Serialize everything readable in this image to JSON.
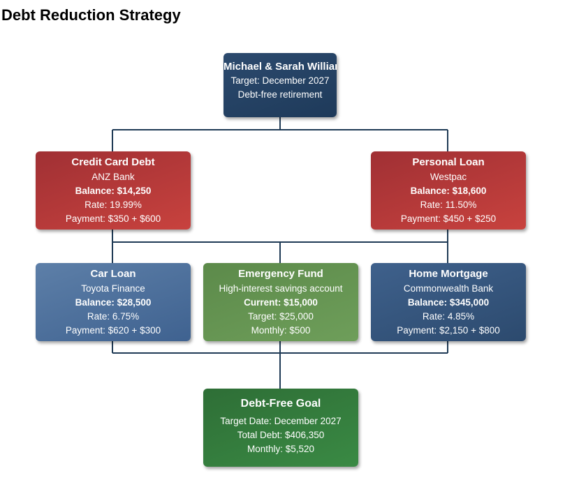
{
  "title": "Debt Reduction Strategy",
  "root": {
    "name": "Michael & Sarah Williams",
    "target": "Target: December 2027",
    "goal": "Debt-free retirement"
  },
  "nodes": {
    "credit_card": {
      "name": "Credit Card Debt",
      "lender": "ANZ Bank",
      "balance": "Balance: $14,250",
      "rate": "Rate: 19.99%",
      "payment": "Payment: $350 + $600"
    },
    "personal_loan": {
      "name": "Personal Loan",
      "lender": "Westpac",
      "balance": "Balance: $18,600",
      "rate": "Rate: 11.50%",
      "payment": "Payment: $450 + $250"
    },
    "car_loan": {
      "name": "Car Loan",
      "lender": "Toyota Finance",
      "balance": "Balance: $28,500",
      "rate": "Rate: 6.75%",
      "payment": "Payment: $620 + $300"
    },
    "emergency_fund": {
      "name": "Emergency Fund",
      "account": "High-interest savings account",
      "current": "Current: $15,000",
      "target": "Target: $25,000",
      "monthly": "Monthly: $500"
    },
    "home_mortgage": {
      "name": "Home Mortgage",
      "lender": "Commonwealth Bank",
      "balance": "Balance: $345,000",
      "rate": "Rate: 4.85%",
      "payment": "Payment: $2,150 + $800"
    }
  },
  "goal": {
    "name": "Debt-Free Goal",
    "target_date": "Target Date: December 2027",
    "total_debt": "Total Debt: $406,350",
    "monthly": "Monthly: $5,520"
  },
  "colors": {
    "root": "#24405f",
    "debt": "#b5393a",
    "car_loan": "#4e70a0",
    "emergency_fund": "#659452",
    "home_mortgage": "#355579",
    "goal": "#34803e",
    "connector": "#1f3a55"
  }
}
